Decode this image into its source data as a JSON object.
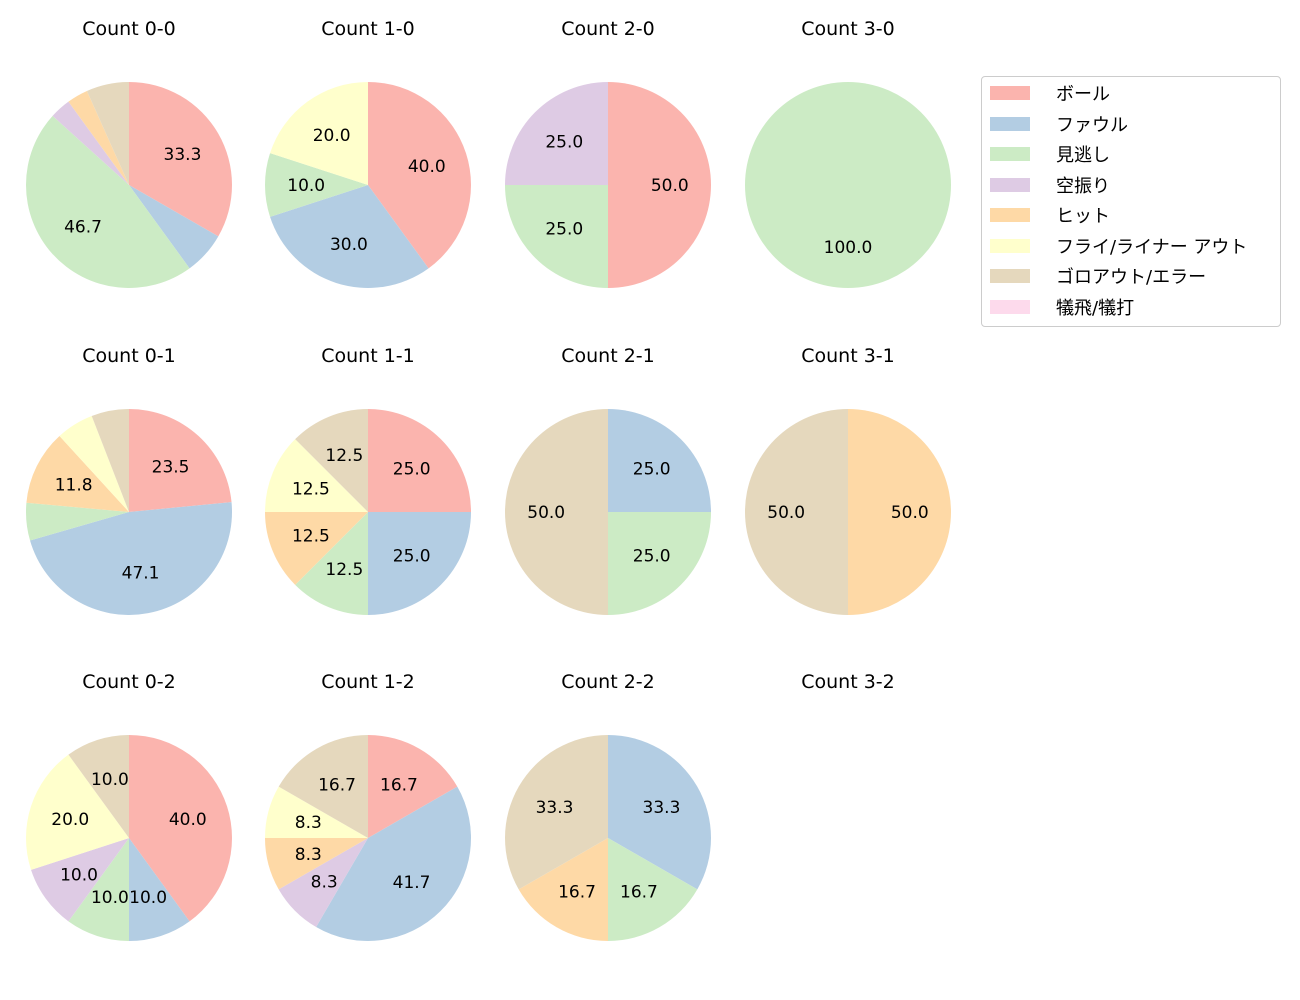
{
  "chart_data": [
    {
      "type": "pie",
      "title": "Count 0-0",
      "values": [
        33.3,
        6.7,
        46.7,
        3.3,
        3.3,
        0,
        6.7,
        0
      ]
    },
    {
      "type": "pie",
      "title": "Count 1-0",
      "values": [
        40.0,
        30.0,
        10.0,
        0,
        0,
        20.0,
        0,
        0
      ]
    },
    {
      "type": "pie",
      "title": "Count 2-0",
      "values": [
        50.0,
        0,
        25.0,
        25.0,
        0,
        0,
        0,
        0
      ]
    },
    {
      "type": "pie",
      "title": "Count 3-0",
      "values": [
        0,
        0,
        100.0,
        0,
        0,
        0,
        0,
        0
      ]
    },
    {
      "type": "pie",
      "title": "Count 0-1",
      "values": [
        23.5,
        47.1,
        5.9,
        0,
        11.8,
        5.9,
        5.9,
        0
      ]
    },
    {
      "type": "pie",
      "title": "Count 1-1",
      "values": [
        25.0,
        25.0,
        12.5,
        0,
        12.5,
        12.5,
        12.5,
        0
      ]
    },
    {
      "type": "pie",
      "title": "Count 2-1",
      "values": [
        0,
        25.0,
        25.0,
        0,
        0,
        0,
        50.0,
        0
      ]
    },
    {
      "type": "pie",
      "title": "Count 3-1",
      "values": [
        0,
        0,
        0,
        0,
        50.0,
        0,
        50.0,
        0
      ]
    },
    {
      "type": "pie",
      "title": "Count 0-2",
      "values": [
        40.0,
        10.0,
        10.0,
        10.0,
        0,
        20.0,
        10.0,
        0
      ]
    },
    {
      "type": "pie",
      "title": "Count 1-2",
      "values": [
        16.7,
        41.7,
        0,
        8.3,
        8.3,
        8.3,
        16.7,
        0
      ]
    },
    {
      "type": "pie",
      "title": "Count 2-2",
      "values": [
        0,
        33.3,
        16.7,
        0,
        16.7,
        0,
        33.3,
        0
      ]
    },
    {
      "type": "pie",
      "title": "Count 3-2",
      "values": [
        0,
        0,
        0,
        0,
        0,
        0,
        0,
        0
      ]
    }
  ],
  "legend": {
    "placement": "top-right",
    "labels": [
      "ボール",
      "ファウル",
      "見逃し",
      "空振り",
      "ヒット",
      "フライ/ライナー アウト",
      "ゴロアウト/エラー",
      "犠飛/犠打"
    ],
    "colors": [
      "#fbb4ae",
      "#b3cde3",
      "#ccebc5",
      "#decbe4",
      "#fed9a6",
      "#ffffcc",
      "#e5d8bd",
      "#fddaec"
    ]
  }
}
